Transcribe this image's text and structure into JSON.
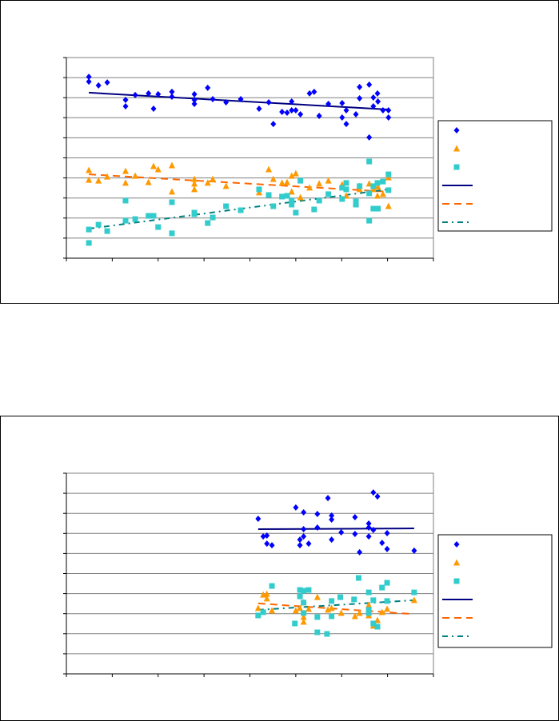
{
  "colors": {
    "series_a": "#0000ff",
    "series_b": "#ff9900",
    "series_c": "#33cccc",
    "trend_a": "#000080",
    "trend_b": "#ff6600",
    "trend_c": "#008080",
    "grid": "#808080"
  },
  "chart_data": [
    {
      "type": "scatter",
      "title": "",
      "xlabel": "",
      "ylabel": "",
      "xlim": [
        0,
        8
      ],
      "ylim": [
        0,
        10
      ],
      "grid": "horizontal",
      "legend": "right",
      "tick_labels_visible": false,
      "series": [
        {
          "marker": "diamond",
          "color": "#0000ff",
          "x": [
            0.49,
            0.49,
            0.7,
            0.89,
            1.29,
            1.29,
            1.5,
            1.79,
            1.9,
            2.0,
            2.3,
            2.3,
            2.79,
            2.79,
            2.79,
            3.08,
            3.19,
            3.48,
            3.8,
            4.2,
            4.41,
            4.51,
            4.7,
            4.81,
            4.91,
            4.91,
            5.0,
            5.1,
            5.3,
            5.4,
            5.51,
            5.71,
            6.01,
            6.01,
            6.1,
            6.1,
            6.31,
            6.39,
            6.39,
            6.6,
            6.69,
            6.69,
            6.78,
            6.79,
            6.9,
            7.02,
            7.02,
            6.6
          ],
          "y": [
            9.04,
            8.8,
            8.61,
            8.76,
            7.89,
            7.57,
            8.13,
            8.21,
            7.45,
            8.17,
            8.29,
            8.05,
            8.17,
            7.89,
            7.69,
            8.49,
            7.93,
            7.77,
            7.93,
            7.45,
            7.77,
            6.69,
            7.29,
            7.25,
            7.81,
            7.37,
            7.37,
            7.17,
            8.21,
            8.29,
            7.09,
            7.69,
            7.73,
            7.01,
            7.37,
            6.69,
            7.17,
            8.53,
            7.97,
            8.65,
            8.01,
            7.57,
            8.21,
            7.81,
            7.37,
            7.37,
            7.01,
            6.02
          ]
        },
        {
          "marker": "triangle",
          "color": "#ff9900",
          "x": [
            0.49,
            0.49,
            0.7,
            0.89,
            1.29,
            1.29,
            1.5,
            1.79,
            1.9,
            2.0,
            2.3,
            2.3,
            2.79,
            2.79,
            2.79,
            3.08,
            3.19,
            3.48,
            4.2,
            4.41,
            4.51,
            4.7,
            4.81,
            4.91,
            4.91,
            5.0,
            5.1,
            5.3,
            5.51,
            5.71,
            6.01,
            6.01,
            6.1,
            6.31,
            6.39,
            6.39,
            6.6,
            6.69,
            6.78,
            6.79,
            6.9,
            7.02,
            7.02
          ],
          "y": [
            4.38,
            3.9,
            3.86,
            4.06,
            4.34,
            3.75,
            4.1,
            3.78,
            4.58,
            4.42,
            4.62,
            3.31,
            3.94,
            3.71,
            3.43,
            3.75,
            3.94,
            3.59,
            3.27,
            4.42,
            3.94,
            3.75,
            3.78,
            4.1,
            3.31,
            4.22,
            3.03,
            3.51,
            3.71,
            3.86,
            3.67,
            3.55,
            3.11,
            2.75,
            3.59,
            3.43,
            3.71,
            3.43,
            3.11,
            3.55,
            3.19,
            4.02,
            2.59
          ]
        },
        {
          "marker": "square",
          "color": "#33cccc",
          "x": [
            0.49,
            0.49,
            0.7,
            0.89,
            1.29,
            1.29,
            1.5,
            1.79,
            1.9,
            2.0,
            2.3,
            2.3,
            2.79,
            2.79,
            3.08,
            3.19,
            3.48,
            3.8,
            4.2,
            4.41,
            4.51,
            4.7,
            4.81,
            4.91,
            4.91,
            5.0,
            5.1,
            5.4,
            5.51,
            5.71,
            6.01,
            6.01,
            6.1,
            6.1,
            6.31,
            6.31,
            6.39,
            6.6,
            6.6,
            6.69,
            6.69,
            6.78,
            6.79,
            6.9,
            7.02,
            7.02,
            6.6
          ],
          "y": [
            1.43,
            0.76,
            1.67,
            1.35,
            2.87,
            1.87,
            1.95,
            2.11,
            2.11,
            1.55,
            1.24,
            2.79,
            2.19,
            2.27,
            1.75,
            2.03,
            2.59,
            2.39,
            3.43,
            3.15,
            2.59,
            3.07,
            3.11,
            2.87,
            2.67,
            2.27,
            3.86,
            2.43,
            2.87,
            3.19,
            3.51,
            2.95,
            3.75,
            3.43,
            2.67,
            2.83,
            3.59,
            4.82,
            1.87,
            3.59,
            2.47,
            3.75,
            2.47,
            3.82,
            4.18,
            3.39,
            3.23
          ]
        },
        {
          "type": "trendline",
          "style": "solid",
          "color": "#000080",
          "x": [
            0.49,
            7.02
          ],
          "y": [
            8.25,
            7.41
          ]
        },
        {
          "type": "trendline",
          "style": "dashed",
          "color": "#ff6600",
          "x": [
            0.49,
            7.02
          ],
          "y": [
            4.18,
            3.31
          ]
        },
        {
          "type": "trendline",
          "style": "dash-dot",
          "color": "#008080",
          "x": [
            0.49,
            7.02
          ],
          "y": [
            1.47,
            3.43
          ]
        }
      ]
    },
    {
      "type": "scatter",
      "title": "",
      "xlabel": "",
      "ylabel": "",
      "xlim": [
        0,
        8
      ],
      "ylim": [
        0,
        10
      ],
      "grid": "horizontal",
      "legend": "right",
      "tick_labels_visible": false,
      "series": [
        {
          "marker": "diamond",
          "color": "#0000ff",
          "x": [
            4.18,
            4.29,
            4.37,
            4.37,
            4.48,
            5.0,
            5.17,
            5.17,
            5.17,
            5.09,
            5.09,
            5.28,
            5.47,
            5.47,
            5.7,
            5.78,
            5.78,
            5.78,
            5.99,
            6.29,
            6.29,
            6.39,
            6.59,
            6.59,
            6.59,
            6.69,
            6.78,
            6.69,
            6.88,
            6.99,
            6.99,
            7.58
          ],
          "y": [
            7.73,
            6.85,
            6.89,
            6.49,
            6.41,
            8.29,
            8.05,
            7.21,
            6.85,
            6.69,
            6.41,
            6.49,
            7.97,
            7.29,
            8.76,
            7.89,
            7.69,
            6.69,
            7.05,
            7.81,
            6.97,
            6.06,
            7.49,
            7.29,
            6.85,
            9.04,
            8.84,
            7.17,
            6.53,
            7.01,
            6.22,
            6.14
          ]
        },
        {
          "marker": "triangle",
          "color": "#ff9900",
          "x": [
            4.29,
            4.37,
            4.37,
            4.18,
            4.48,
            5.0,
            5.09,
            5.17,
            5.17,
            5.17,
            5.28,
            5.47,
            5.7,
            5.78,
            5.99,
            6.29,
            6.39,
            6.59,
            6.59,
            6.69,
            6.78,
            6.88,
            6.99,
            7.58
          ],
          "y": [
            3.94,
            3.98,
            3.75,
            3.27,
            3.15,
            3.15,
            3.27,
            3.55,
            2.83,
            2.59,
            3.23,
            3.82,
            3.19,
            3.27,
            3.03,
            2.87,
            3.03,
            3.43,
            2.91,
            2.39,
            2.67,
            3.07,
            3.23,
            3.67
          ]
        },
        {
          "marker": "square",
          "color": "#33cccc",
          "x": [
            4.18,
            4.29,
            4.48,
            5.09,
            5.17,
            5.28,
            5.09,
            5.17,
            5.17,
            4.98,
            5.47,
            5.47,
            5.68,
            5.78,
            5.78,
            5.97,
            6.27,
            6.37,
            6.59,
            6.59,
            6.69,
            6.69,
            6.78,
            6.88,
            6.99,
            6.99,
            7.58,
            6.59
          ],
          "y": [
            2.91,
            3.07,
            4.38,
            4.18,
            4.14,
            4.18,
            3.86,
            3.55,
            3.03,
            2.51,
            2.83,
            2.07,
            1.99,
            3.63,
            2.87,
            3.82,
            3.71,
            4.78,
            4.06,
            3.19,
            3.67,
            2.51,
            2.35,
            4.3,
            4.54,
            3.63,
            4.06,
            3.03
          ]
        },
        {
          "type": "trendline",
          "style": "solid",
          "color": "#000080",
          "x": [
            4.18,
            7.58
          ],
          "y": [
            7.21,
            7.25
          ]
        },
        {
          "type": "trendline",
          "style": "dashed",
          "color": "#ff6600",
          "x": [
            4.18,
            7.49
          ],
          "y": [
            3.51,
            2.99
          ]
        },
        {
          "type": "trendline",
          "style": "dash-dot",
          "color": "#008080",
          "x": [
            4.18,
            7.58
          ],
          "y": [
            3.19,
            3.67
          ]
        }
      ]
    }
  ]
}
